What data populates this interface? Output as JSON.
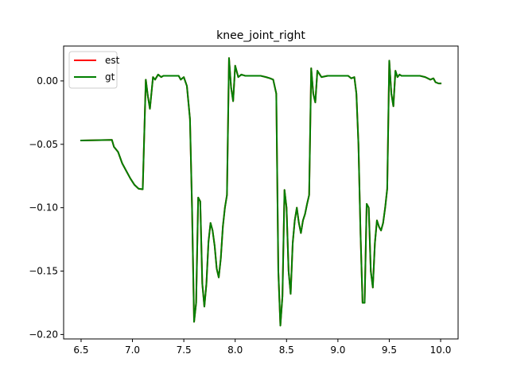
{
  "chart_data": {
    "type": "line",
    "title": "knee_joint_right",
    "xlabel": "",
    "ylabel": "",
    "xlim": [
      6.33,
      10.17
    ],
    "ylim": [
      -0.2035,
      0.0275
    ],
    "xticks": [
      6.5,
      7.0,
      7.5,
      8.0,
      8.5,
      9.0,
      9.5,
      10.0
    ],
    "xtick_labels": [
      "6.5",
      "7.0",
      "7.5",
      "8.0",
      "8.5",
      "9.0",
      "9.5",
      "10.0"
    ],
    "yticks": [
      0.0,
      -0.05,
      -0.1,
      -0.15,
      -0.2
    ],
    "ytick_labels": [
      "0.00",
      "−0.05",
      "−0.10",
      "−0.15",
      "−0.20"
    ],
    "grid": false,
    "legend": {
      "position": "top-left",
      "entries": [
        "est",
        "gt"
      ]
    },
    "series": [
      {
        "name": "est",
        "color": "#ff0000",
        "x": [
          6.5,
          6.8,
          6.82,
          6.86,
          6.9,
          6.94,
          6.98,
          7.02,
          7.06,
          7.1,
          7.13,
          7.15,
          7.17,
          7.2,
          7.22,
          7.25,
          7.28,
          7.3,
          7.34,
          7.38,
          7.42,
          7.45,
          7.47,
          7.5,
          7.53,
          7.56,
          7.58,
          7.6,
          7.62,
          7.64,
          7.66,
          7.68,
          7.7,
          7.72,
          7.74,
          7.76,
          7.78,
          7.8,
          7.82,
          7.84,
          7.86,
          7.88,
          7.9,
          7.92,
          7.94,
          7.96,
          7.98,
          8.0,
          8.03,
          8.06,
          8.1,
          8.15,
          8.2,
          8.25,
          8.3,
          8.34,
          8.37,
          8.4,
          8.42,
          8.44,
          8.46,
          8.48,
          8.5,
          8.52,
          8.54,
          8.56,
          8.58,
          8.6,
          8.62,
          8.64,
          8.66,
          8.68,
          8.7,
          8.72,
          8.74,
          8.76,
          8.78,
          8.8,
          8.84,
          8.9,
          8.95,
          9.0,
          9.05,
          9.1,
          9.13,
          9.16,
          9.18,
          9.2,
          9.22,
          9.24,
          9.26,
          9.28,
          9.3,
          9.32,
          9.34,
          9.36,
          9.38,
          9.4,
          9.42,
          9.44,
          9.46,
          9.48,
          9.5,
          9.52,
          9.54,
          9.56,
          9.58,
          9.6,
          9.62,
          9.65,
          9.7,
          9.75,
          9.8,
          9.85,
          9.9,
          9.93,
          9.95,
          9.98,
          10.0
        ],
        "y": [
          -0.047,
          -0.0465,
          -0.052,
          -0.056,
          -0.065,
          -0.071,
          -0.077,
          -0.082,
          -0.085,
          -0.0855,
          0.001,
          -0.012,
          -0.022,
          0.003,
          0.001,
          0.005,
          0.003,
          0.004,
          0.004,
          0.004,
          0.004,
          0.004,
          0.001,
          0.003,
          -0.004,
          -0.03,
          -0.1,
          -0.19,
          -0.175,
          -0.092,
          -0.095,
          -0.16,
          -0.178,
          -0.16,
          -0.127,
          -0.112,
          -0.118,
          -0.13,
          -0.148,
          -0.155,
          -0.14,
          -0.115,
          -0.1,
          -0.09,
          0.018,
          -0.005,
          -0.016,
          0.012,
          0.003,
          0.005,
          0.004,
          0.004,
          0.004,
          0.004,
          0.003,
          0.002,
          0.001,
          -0.01,
          -0.15,
          -0.193,
          -0.17,
          -0.086,
          -0.1,
          -0.15,
          -0.168,
          -0.128,
          -0.11,
          -0.1,
          -0.112,
          -0.12,
          -0.11,
          -0.105,
          -0.097,
          -0.09,
          0.01,
          -0.01,
          -0.017,
          0.008,
          0.003,
          0.004,
          0.004,
          0.004,
          0.004,
          0.004,
          0.002,
          0.003,
          -0.01,
          -0.05,
          -0.12,
          -0.175,
          -0.175,
          -0.097,
          -0.1,
          -0.15,
          -0.163,
          -0.128,
          -0.11,
          -0.115,
          -0.118,
          -0.112,
          -0.1,
          -0.085,
          0.016,
          -0.01,
          -0.02,
          0.008,
          0.003,
          0.005,
          0.004,
          0.004,
          0.004,
          0.004,
          0.004,
          0.003,
          0.001,
          0.002,
          -0.001,
          -0.002,
          -0.002
        ]
      },
      {
        "name": "gt",
        "color": "#007f00",
        "x": [
          6.5,
          6.8,
          6.82,
          6.86,
          6.9,
          6.94,
          6.98,
          7.02,
          7.06,
          7.1,
          7.13,
          7.15,
          7.17,
          7.2,
          7.22,
          7.25,
          7.28,
          7.3,
          7.34,
          7.38,
          7.42,
          7.45,
          7.47,
          7.5,
          7.53,
          7.56,
          7.58,
          7.6,
          7.62,
          7.64,
          7.66,
          7.68,
          7.7,
          7.72,
          7.74,
          7.76,
          7.78,
          7.8,
          7.82,
          7.84,
          7.86,
          7.88,
          7.9,
          7.92,
          7.94,
          7.96,
          7.98,
          8.0,
          8.03,
          8.06,
          8.1,
          8.15,
          8.2,
          8.25,
          8.3,
          8.34,
          8.37,
          8.4,
          8.42,
          8.44,
          8.46,
          8.48,
          8.5,
          8.52,
          8.54,
          8.56,
          8.58,
          8.6,
          8.62,
          8.64,
          8.66,
          8.68,
          8.7,
          8.72,
          8.74,
          8.76,
          8.78,
          8.8,
          8.84,
          8.9,
          8.95,
          9.0,
          9.05,
          9.1,
          9.13,
          9.16,
          9.18,
          9.2,
          9.22,
          9.24,
          9.26,
          9.28,
          9.3,
          9.32,
          9.34,
          9.36,
          9.38,
          9.4,
          9.42,
          9.44,
          9.46,
          9.48,
          9.5,
          9.52,
          9.54,
          9.56,
          9.58,
          9.6,
          9.62,
          9.65,
          9.7,
          9.75,
          9.8,
          9.85,
          9.9,
          9.93,
          9.95,
          9.98,
          10.0
        ],
        "y": [
          -0.047,
          -0.0465,
          -0.052,
          -0.056,
          -0.065,
          -0.071,
          -0.077,
          -0.082,
          -0.085,
          -0.0855,
          0.001,
          -0.012,
          -0.022,
          0.003,
          0.001,
          0.005,
          0.003,
          0.004,
          0.004,
          0.004,
          0.004,
          0.004,
          0.001,
          0.003,
          -0.004,
          -0.03,
          -0.1,
          -0.19,
          -0.175,
          -0.092,
          -0.095,
          -0.16,
          -0.178,
          -0.16,
          -0.127,
          -0.112,
          -0.118,
          -0.13,
          -0.148,
          -0.155,
          -0.14,
          -0.115,
          -0.1,
          -0.09,
          0.018,
          -0.005,
          -0.016,
          0.012,
          0.003,
          0.005,
          0.004,
          0.004,
          0.004,
          0.004,
          0.003,
          0.002,
          0.001,
          -0.01,
          -0.15,
          -0.193,
          -0.17,
          -0.086,
          -0.1,
          -0.15,
          -0.168,
          -0.128,
          -0.11,
          -0.1,
          -0.112,
          -0.12,
          -0.11,
          -0.105,
          -0.097,
          -0.09,
          0.01,
          -0.01,
          -0.017,
          0.008,
          0.003,
          0.004,
          0.004,
          0.004,
          0.004,
          0.004,
          0.002,
          0.003,
          -0.01,
          -0.05,
          -0.12,
          -0.175,
          -0.175,
          -0.097,
          -0.1,
          -0.15,
          -0.163,
          -0.128,
          -0.11,
          -0.115,
          -0.118,
          -0.112,
          -0.1,
          -0.085,
          0.016,
          -0.01,
          -0.02,
          0.008,
          0.003,
          0.005,
          0.004,
          0.004,
          0.004,
          0.004,
          0.004,
          0.003,
          0.001,
          0.002,
          -0.001,
          -0.002,
          -0.002
        ]
      }
    ]
  }
}
